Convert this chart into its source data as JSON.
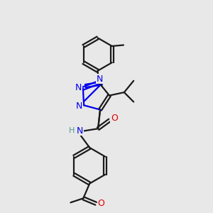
{
  "bg_color": "#e8e8e8",
  "bond_color": "#1a1a1a",
  "N_color": "#0000ee",
  "O_color": "#dd0000",
  "H_color": "#4a9a8a",
  "lw": 1.6,
  "fs": 8.5,
  "dpi": 100,
  "fig_size": [
    3.0,
    3.0
  ],
  "xlim": [
    0,
    10
  ],
  "ylim": [
    0,
    10
  ]
}
